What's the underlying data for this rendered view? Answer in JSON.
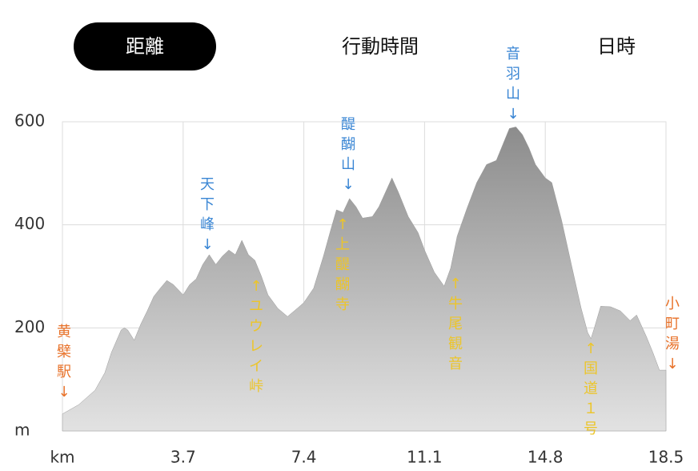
{
  "tabs": [
    "距離",
    "行動時間",
    "日時"
  ],
  "selected_tab": 0,
  "chart_data": {
    "type": "area",
    "color": "#9a9a9a",
    "grid": true,
    "x": [
      0,
      0.5,
      1.0,
      1.3,
      1.5,
      1.8,
      1.9,
      2.0,
      2.2,
      2.4,
      2.6,
      2.8,
      3.0,
      3.2,
      3.4,
      3.7,
      3.9,
      4.1,
      4.3,
      4.5,
      4.7,
      4.9,
      5.1,
      5.3,
      5.5,
      5.7,
      5.9,
      6.1,
      6.3,
      6.6,
      6.9,
      7.2,
      7.4,
      7.7,
      8.0,
      8.2,
      8.4,
      8.6,
      8.8,
      9.0,
      9.2,
      9.5,
      9.7,
      9.9,
      10.1,
      10.3,
      10.6,
      10.9,
      11.1,
      11.4,
      11.7,
      11.9,
      12.1,
      12.4,
      12.7,
      13.0,
      13.3,
      13.5,
      13.7,
      13.9,
      14.1,
      14.3,
      14.5,
      14.8,
      15.0,
      15.3,
      15.6,
      15.9,
      16.1,
      16.2,
      16.3,
      16.5,
      16.8,
      17.1,
      17.4,
      17.6,
      17.9,
      18.1,
      18.3,
      18.5
    ],
    "values": [
      33,
      51,
      79,
      113,
      152,
      196,
      200,
      196,
      176,
      207,
      233,
      261,
      277,
      292,
      284,
      264,
      284,
      295,
      323,
      342,
      323,
      339,
      351,
      342,
      370,
      342,
      331,
      300,
      264,
      238,
      222,
      238,
      249,
      277,
      339,
      385,
      429,
      424,
      451,
      435,
      413,
      416,
      435,
      463,
      491,
      463,
      416,
      385,
      351,
      308,
      281,
      316,
      378,
      432,
      482,
      517,
      525,
      556,
      587,
      590,
      575,
      549,
      517,
      491,
      482,
      409,
      323,
      238,
      191,
      179,
      199,
      242,
      241,
      233,
      214,
      225,
      183,
      152,
      118,
      118
    ],
    "xlim": [
      0,
      18.5
    ],
    "ylim": [
      0,
      600
    ],
    "xticks": [
      {
        "value": 0,
        "label": "km"
      },
      3.7,
      7.4,
      11.1,
      14.8,
      18.5
    ],
    "yticks": [
      {
        "value": 0,
        "label": "m"
      },
      200,
      400,
      600
    ],
    "annotations": [
      {
        "text": "黄檗駅↓",
        "color": "#e8722a"
      },
      {
        "text": "天下峰↓",
        "color": "#3a86d4"
      },
      {
        "text": "醍醐山↓",
        "color": "#3a86d4"
      },
      {
        "text": "音羽山↓",
        "color": "#3a86d4"
      },
      {
        "text": "↑ユウレイ峠",
        "color": "#ecc52a"
      },
      {
        "text": "↑上醍醐寺",
        "color": "#ecc52a"
      },
      {
        "text": "↑牛尾観音",
        "color": "#ecc52a"
      },
      {
        "text": "↑国道１号",
        "color": "#ecc52a"
      },
      {
        "text": "小町湯↓",
        "color": "#e8722a"
      }
    ]
  }
}
